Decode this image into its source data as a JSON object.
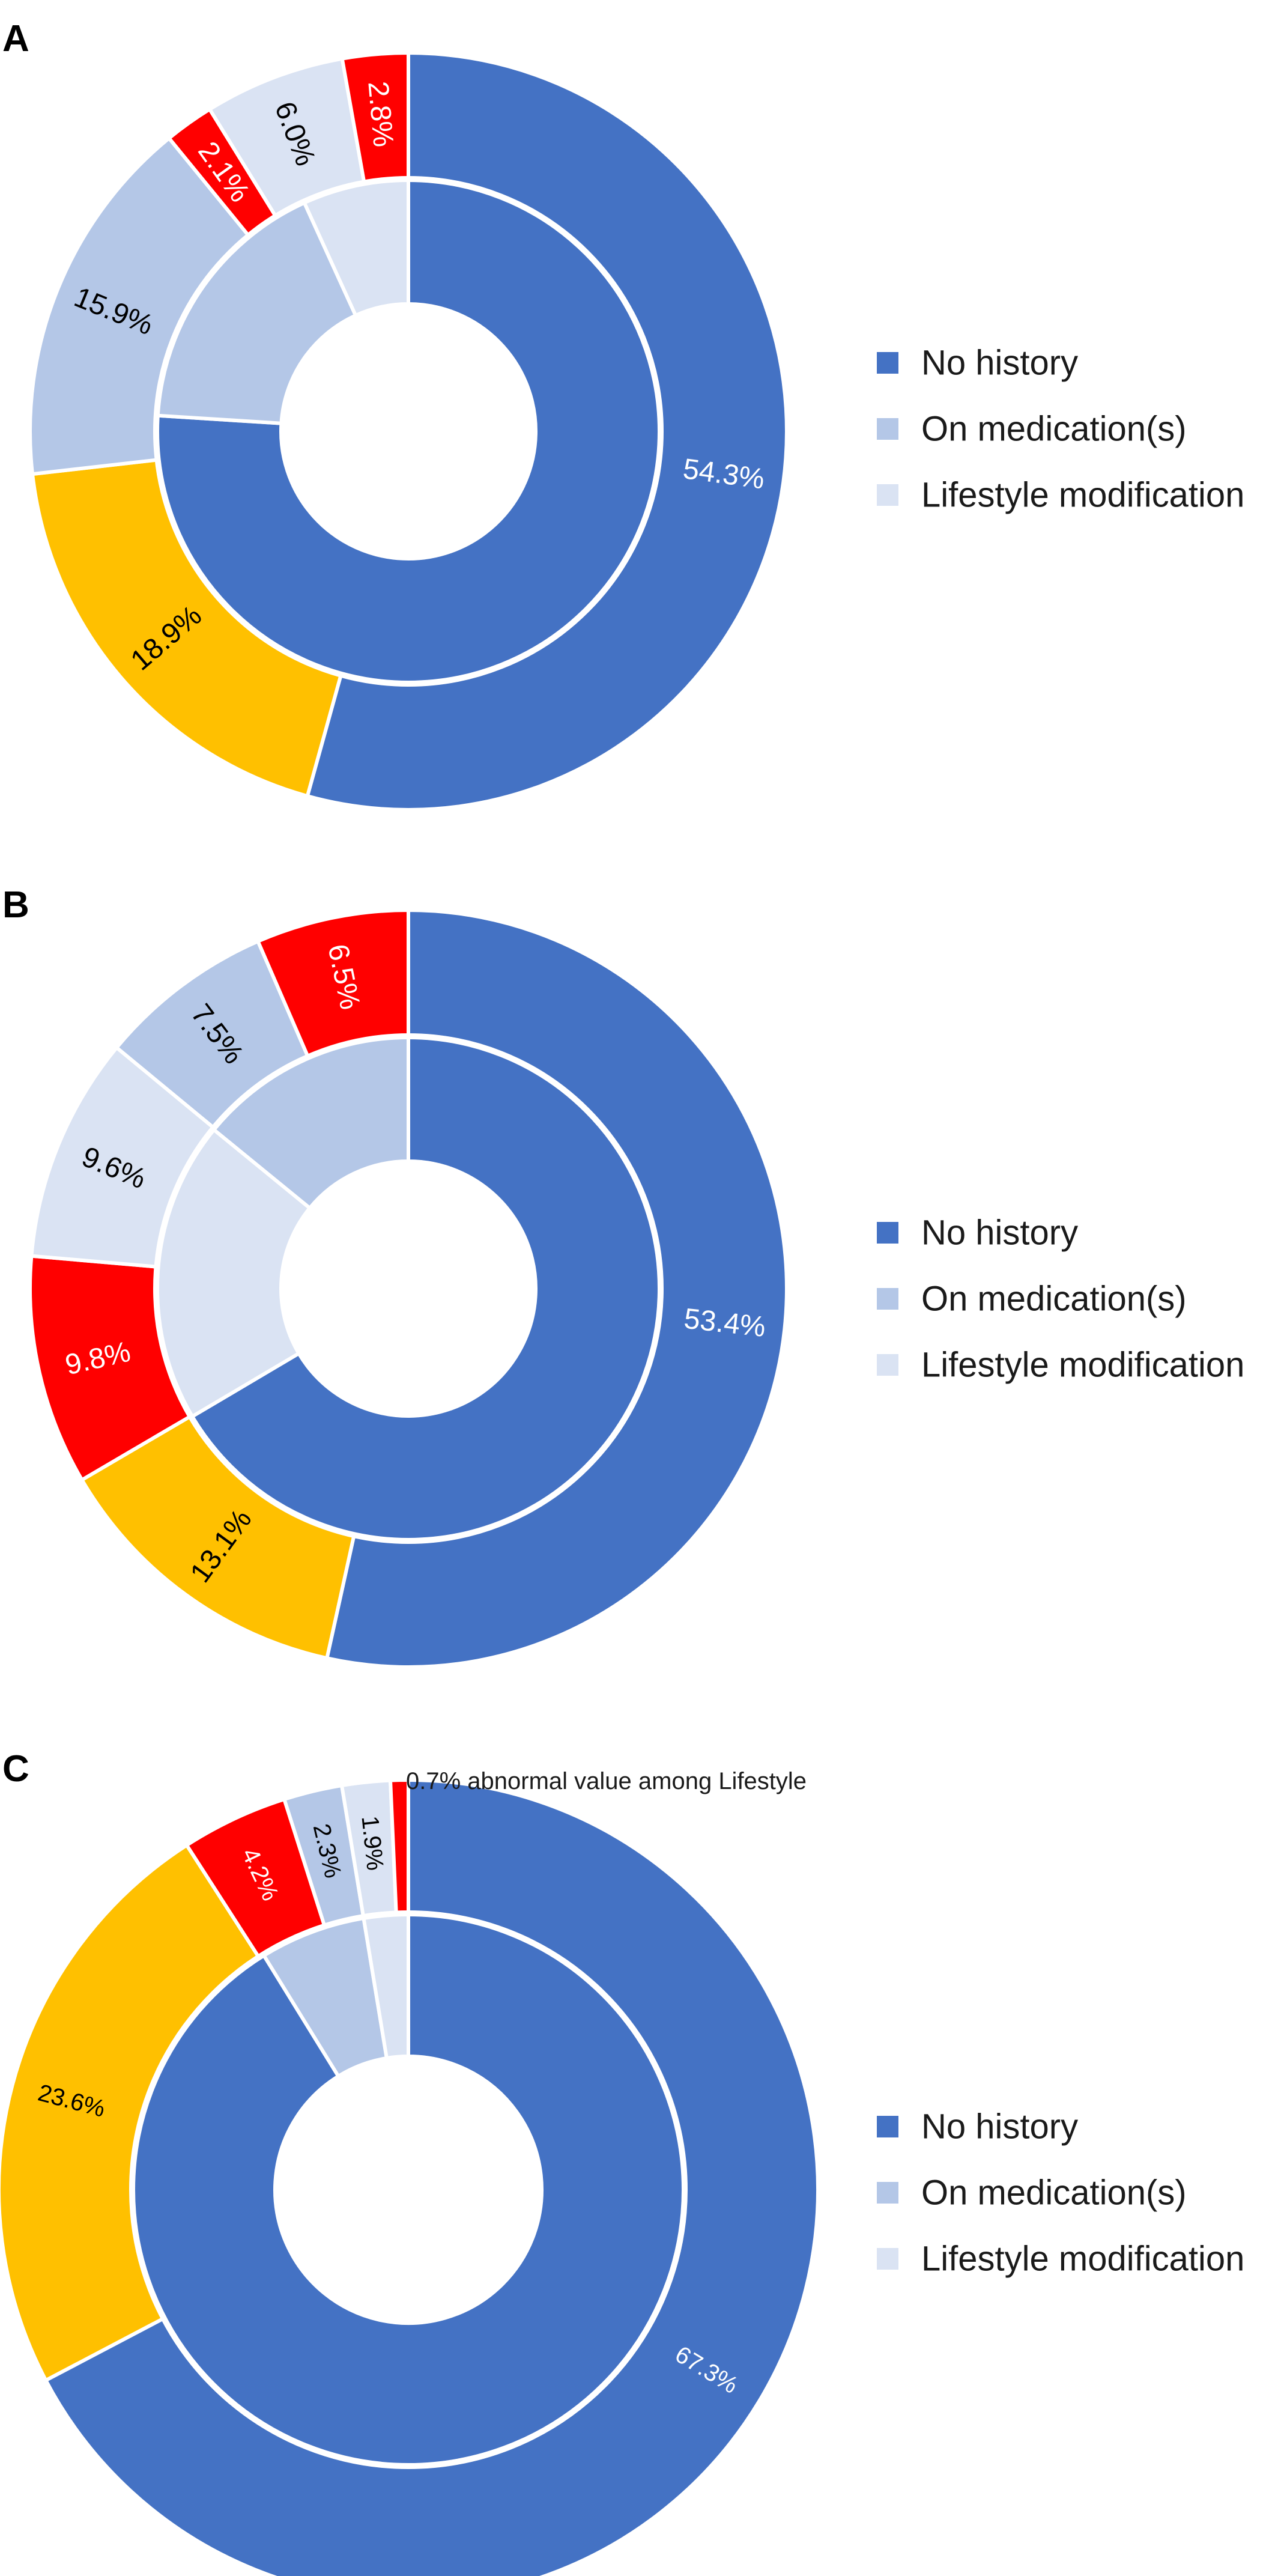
{
  "colors": {
    "no_history": "#4472C4",
    "on_medication": "#B4C7E7",
    "lifestyle": "#DAE3F3",
    "yellow": "#FFC000",
    "red": "#FF0000"
  },
  "chart_data": [
    {
      "type": "pie",
      "panel": "A",
      "legend": [
        "No history",
        "On medication(s)",
        "Lifestyle modification"
      ],
      "legend_position": "right",
      "inner_ring": {
        "values": [
          76.0,
          17.2,
          6.8
        ],
        "colors": [
          "#4472C4",
          "#B4C7E7",
          "#DAE3F3"
        ]
      },
      "outer_ring": {
        "values": [
          54.3,
          18.9,
          15.9,
          2.1,
          6.0,
          2.8
        ],
        "labels": [
          "54.3%",
          "18.9%",
          "15.9%",
          "2.1%",
          "6.0%",
          "2.8%"
        ],
        "colors": [
          "#4472C4",
          "#FFC000",
          "#B4C7E7",
          "#FF0000",
          "#DAE3F3",
          "#FF0000"
        ],
        "label_colors": [
          "#ffffff",
          "#000000",
          "#000000",
          "#ffffff",
          "#000000",
          "#ffffff"
        ]
      },
      "note": ""
    },
    {
      "type": "pie",
      "panel": "B",
      "legend": [
        "No history",
        "On medication(s)",
        "Lifestyle modification"
      ],
      "legend_position": "right",
      "inner_ring": {
        "values": [
          66.5,
          19.4,
          14.1
        ],
        "colors": [
          "#4472C4",
          "#DAE3F3",
          "#B4C7E7"
        ]
      },
      "outer_ring": {
        "values": [
          53.4,
          13.1,
          9.8,
          9.6,
          7.5,
          6.5
        ],
        "labels": [
          "53.4%",
          "13.1%",
          "9.8%",
          "9.6%",
          "7.5%",
          "6.5%"
        ],
        "colors": [
          "#4472C4",
          "#FFC000",
          "#FF0000",
          "#DAE3F3",
          "#B4C7E7",
          "#FF0000"
        ],
        "label_colors": [
          "#ffffff",
          "#000000",
          "#ffffff",
          "#000000",
          "#000000",
          "#ffffff"
        ]
      },
      "note": ""
    },
    {
      "type": "pie",
      "panel": "C",
      "legend": [
        "No history",
        "On medication(s)",
        "Lifestyle modification"
      ],
      "legend_position": "right",
      "inner_ring": {
        "values": [
          91.2,
          6.2,
          2.6
        ],
        "colors": [
          "#4472C4",
          "#B4C7E7",
          "#DAE3F3"
        ]
      },
      "outer_ring": {
        "values": [
          67.3,
          23.6,
          4.2,
          2.3,
          1.9,
          0.7
        ],
        "labels": [
          "67.3%",
          "23.6%",
          "4.2%",
          "2.3%",
          "1.9%",
          ""
        ],
        "colors": [
          "#4472C4",
          "#FFC000",
          "#FF0000",
          "#B4C7E7",
          "#DAE3F3",
          "#FF0000"
        ],
        "label_colors": [
          "#ffffff",
          "#000000",
          "#ffffff",
          "#000000",
          "#000000",
          "#ffffff"
        ]
      },
      "note": "0.7% abnormal value among Lifestyle"
    }
  ]
}
